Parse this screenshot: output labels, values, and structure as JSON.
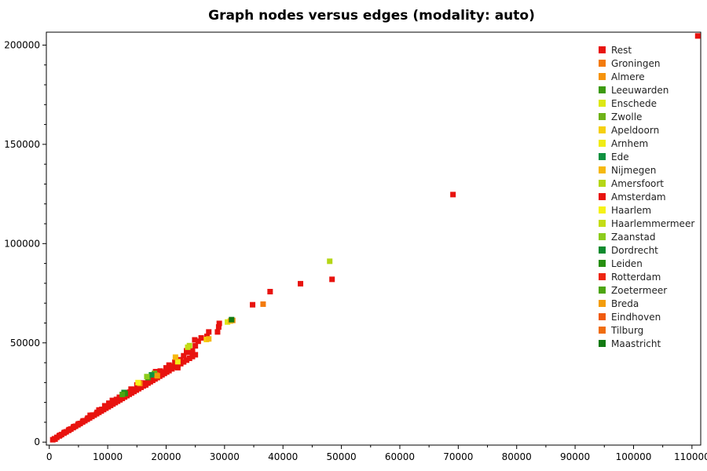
{
  "chart_data": {
    "type": "scatter",
    "title": "Graph nodes versus edges (modality: auto)",
    "xlabel": "",
    "ylabel": "",
    "xlim": [
      -500,
      111500
    ],
    "ylim": [
      -1500,
      206500
    ],
    "x_ticks": [
      0,
      10000,
      20000,
      30000,
      40000,
      50000,
      60000,
      70000,
      80000,
      90000,
      100000,
      110000
    ],
    "y_ticks": [
      0,
      50000,
      100000,
      150000,
      200000
    ],
    "grid": false,
    "legend_position": "top-right",
    "series": [
      {
        "name": "Rest",
        "color": "#e8130f",
        "points": [
          [
            600,
            1200
          ],
          [
            900,
            1700
          ],
          [
            1300,
            2400
          ],
          [
            1700,
            3100
          ],
          [
            2100,
            3800
          ],
          [
            2500,
            4500
          ],
          [
            2900,
            5200
          ],
          [
            3300,
            5900
          ],
          [
            3700,
            6600
          ],
          [
            4100,
            7300
          ],
          [
            4500,
            8000
          ],
          [
            4900,
            8700
          ],
          [
            5300,
            9400
          ],
          [
            5700,
            10100
          ],
          [
            6100,
            10800
          ],
          [
            6500,
            11500
          ],
          [
            6900,
            12200
          ],
          [
            7300,
            12900
          ],
          [
            7700,
            13600
          ],
          [
            8100,
            14300
          ],
          [
            8500,
            15000
          ],
          [
            8900,
            15700
          ],
          [
            9300,
            16400
          ],
          [
            9700,
            17100
          ],
          [
            10100,
            17800
          ],
          [
            10500,
            18500
          ],
          [
            10900,
            19200
          ],
          [
            11300,
            19900
          ],
          [
            11700,
            20600
          ],
          [
            12100,
            21300
          ],
          [
            12500,
            22000
          ],
          [
            12900,
            22700
          ],
          [
            13300,
            23400
          ],
          [
            13700,
            24100
          ],
          [
            14100,
            24800
          ],
          [
            14500,
            25500
          ],
          [
            14900,
            26200
          ],
          [
            15300,
            26900
          ],
          [
            15700,
            27600
          ],
          [
            16100,
            28300
          ],
          [
            16500,
            29000
          ],
          [
            16900,
            29700
          ],
          [
            17300,
            30400
          ],
          [
            17700,
            31100
          ],
          [
            18100,
            31800
          ],
          [
            18500,
            32500
          ],
          [
            18900,
            33200
          ],
          [
            19300,
            33900
          ],
          [
            19700,
            34600
          ],
          [
            20100,
            35300
          ],
          [
            20500,
            36000
          ],
          [
            21000,
            36900
          ],
          [
            21500,
            37800
          ],
          [
            22000,
            38700
          ],
          [
            22500,
            39500
          ],
          [
            23000,
            40400
          ],
          [
            23500,
            41300
          ],
          [
            24000,
            42200
          ],
          [
            24500,
            43100
          ],
          [
            25000,
            44000
          ],
          [
            1000,
            1500
          ],
          [
            1800,
            3400
          ],
          [
            2600,
            4900
          ],
          [
            3400,
            6300
          ],
          [
            4200,
            7800
          ],
          [
            5000,
            9200
          ],
          [
            5800,
            10700
          ],
          [
            6600,
            12100
          ],
          [
            7400,
            13600
          ],
          [
            8200,
            15000
          ],
          [
            9000,
            16500
          ],
          [
            9800,
            17900
          ],
          [
            10600,
            19400
          ],
          [
            11400,
            20800
          ],
          [
            12200,
            22300
          ],
          [
            13000,
            23700
          ],
          [
            13800,
            25200
          ],
          [
            14600,
            26600
          ],
          [
            15400,
            28100
          ],
          [
            16200,
            29500
          ],
          [
            17000,
            31000
          ],
          [
            17800,
            32400
          ],
          [
            18600,
            33900
          ],
          [
            19400,
            35300
          ],
          [
            20200,
            36800
          ],
          [
            21000,
            38200
          ],
          [
            21800,
            39700
          ],
          [
            7000,
            13500
          ],
          [
            8500,
            16200
          ],
          [
            9500,
            18300
          ],
          [
            10200,
            19600
          ],
          [
            10800,
            21000
          ],
          [
            11500,
            21500
          ],
          [
            12000,
            22600
          ],
          [
            13500,
            25000
          ],
          [
            14000,
            26700
          ],
          [
            15000,
            28800
          ],
          [
            16000,
            29800
          ],
          [
            17000,
            32000
          ],
          [
            18000,
            33600
          ],
          [
            19000,
            35800
          ],
          [
            20000,
            37400
          ],
          [
            20500,
            38800
          ],
          [
            21500,
            40300
          ],
          [
            22500,
            41500
          ],
          [
            23000,
            43500
          ],
          [
            23800,
            45200
          ],
          [
            24500,
            45500
          ],
          [
            25000,
            48500
          ],
          [
            25500,
            50800
          ],
          [
            26000,
            52500
          ],
          [
            27000,
            53300
          ],
          [
            16500,
            28800
          ],
          [
            18200,
            35500
          ],
          [
            21000,
            38000
          ],
          [
            22000,
            37500
          ],
          [
            23500,
            46000
          ],
          [
            24500,
            46000
          ],
          [
            24900,
            51500
          ],
          [
            28800,
            55500
          ],
          [
            29000,
            58000
          ],
          [
            29100,
            59800
          ],
          [
            27300,
            55500
          ],
          [
            34800,
            69200
          ],
          [
            37800,
            75800
          ],
          [
            43000,
            79800
          ],
          [
            48400,
            82000
          ],
          [
            69100,
            124700
          ],
          [
            111000,
            204600
          ]
        ]
      },
      {
        "name": "Groningen",
        "color": "#f37b0d",
        "points": [
          [
            36600,
            69500
          ],
          [
            18300,
            33800
          ]
        ]
      },
      {
        "name": "Almere",
        "color": "#f6930c",
        "points": [
          [
            15500,
            29500
          ],
          [
            31400,
            61300
          ]
        ]
      },
      {
        "name": "Leeuwarden",
        "color": "#3d9a0f",
        "points": [
          [
            16900,
            32500
          ]
        ]
      },
      {
        "name": "Enschede",
        "color": "#dde814",
        "points": [
          [
            30500,
            60500
          ]
        ]
      },
      {
        "name": "Zwolle",
        "color": "#6eb218",
        "points": [
          [
            18000,
            34600
          ]
        ]
      },
      {
        "name": "Apeldoorn",
        "color": "#f6d00f",
        "points": [
          [
            26900,
            51700
          ]
        ]
      },
      {
        "name": "Arnhem",
        "color": "#f0ec16",
        "points": [
          [
            22000,
            40500
          ]
        ]
      },
      {
        "name": "Ede",
        "color": "#0e9140",
        "points": [
          [
            17500,
            33900
          ]
        ]
      },
      {
        "name": "Nijmegen",
        "color": "#f6b90f",
        "points": [
          [
            27300,
            52000
          ],
          [
            31000,
            61000
          ],
          [
            21600,
            42800
          ]
        ]
      },
      {
        "name": "Amersfoort",
        "color": "#b5d616",
        "points": [
          [
            48000,
            91100
          ],
          [
            24000,
            48600
          ]
        ]
      },
      {
        "name": "Amsterdam",
        "color": "#e8130f",
        "points": []
      },
      {
        "name": "Haarlem",
        "color": "#f6f217",
        "points": [
          [
            15200,
            30000
          ]
        ]
      },
      {
        "name": "Haarlemmermeer",
        "color": "#c4dd16",
        "points": [
          [
            23700,
            47800
          ]
        ]
      },
      {
        "name": "Zaanstad",
        "color": "#8ccc1c",
        "points": [
          [
            16700,
            33000
          ]
        ]
      },
      {
        "name": "Dordrecht",
        "color": "#0e8a2e",
        "points": [
          [
            12800,
            25000
          ]
        ]
      },
      {
        "name": "Leiden",
        "color": "#278f10",
        "points": [
          [
            13000,
            24500
          ]
        ]
      },
      {
        "name": "Rotterdam",
        "color": "#ee2511",
        "points": []
      },
      {
        "name": "Zoetermeer",
        "color": "#4da510",
        "points": [
          [
            12500,
            24000
          ]
        ]
      },
      {
        "name": "Breda",
        "color": "#f39d0b",
        "points": [
          [
            18500,
            33400
          ]
        ]
      },
      {
        "name": "Eindhoven",
        "color": "#f05a0f",
        "points": []
      },
      {
        "name": "Tilburg",
        "color": "#f06d0f",
        "points": []
      },
      {
        "name": "Maastricht",
        "color": "#127a12",
        "points": [
          [
            31200,
            61700
          ]
        ]
      }
    ]
  }
}
